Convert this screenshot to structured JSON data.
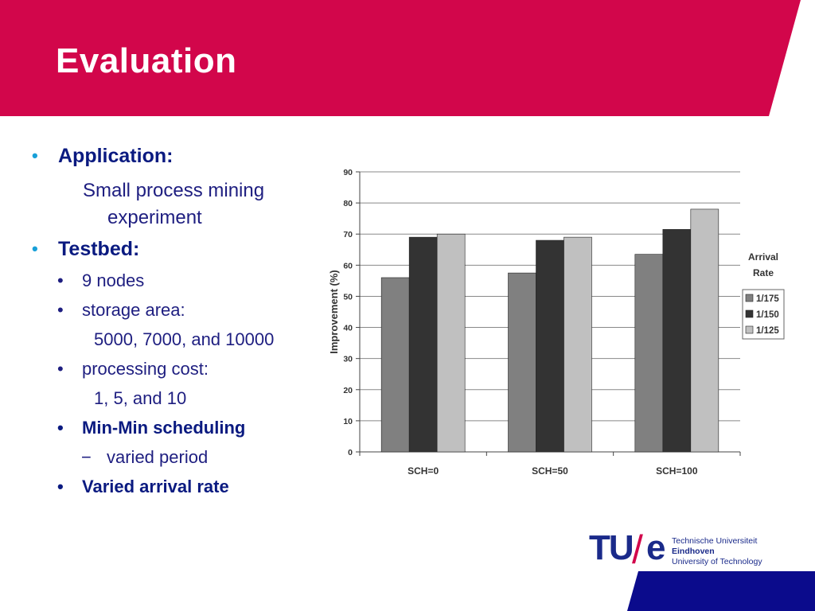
{
  "slide": {
    "title": "Evaluation",
    "colors": {
      "header": "#d2064b",
      "text": "#0a1a80",
      "bullet": "#18a0d8",
      "footer": "#0b0b8c"
    }
  },
  "bullets": {
    "application_label": "Application:",
    "application_text_1": "Small process mining",
    "application_text_2": "experiment",
    "testbed_label": "Testbed:",
    "nodes": "9 nodes",
    "storage_label": "storage area:",
    "storage_values": "5000, 7000, and 10000",
    "processing_label": "processing cost:",
    "processing_values": "1, 5, and 10",
    "minmin": "Min-Min scheduling",
    "varied_period": "varied period",
    "arrival": "Varied arrival rate",
    "bullet_char": "•",
    "dash_char": "−"
  },
  "logo": {
    "mark_tu": "TU",
    "mark_slash": "/",
    "mark_e": "e",
    "line1": "Technische Universiteit",
    "line2": "Eindhoven",
    "line3": "University of Technology"
  },
  "chart_data": {
    "type": "bar",
    "categories": [
      "SCH=0",
      "SCH=50",
      "SCH=100"
    ],
    "series": [
      {
        "name": "1/175",
        "values": [
          56,
          57.5,
          63.5
        ],
        "color": "#808080"
      },
      {
        "name": "1/150",
        "values": [
          69,
          68,
          71.5
        ],
        "color": "#333333"
      },
      {
        "name": "1/125",
        "values": [
          70,
          69,
          78
        ],
        "color": "#c0c0c0"
      }
    ],
    "ylabel": "Improvement (%)",
    "xlabel": "",
    "ylim": [
      0,
      90
    ],
    "yticks": [
      0,
      10,
      20,
      30,
      40,
      50,
      60,
      70,
      80,
      90
    ],
    "legend_title_1": "Arrival",
    "legend_title_2": "Rate",
    "legend_position": "right",
    "grid": true
  }
}
